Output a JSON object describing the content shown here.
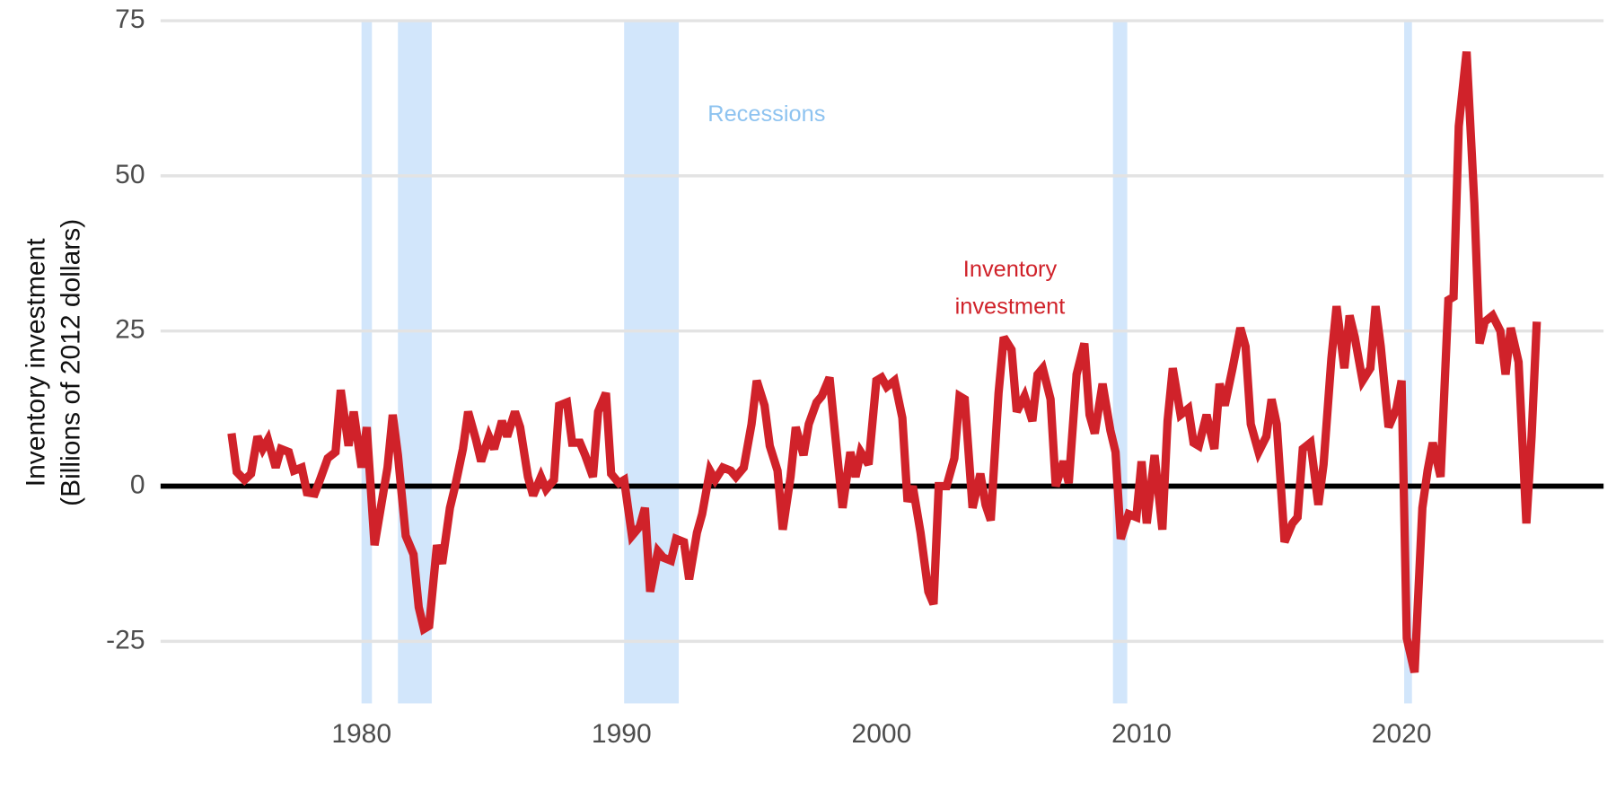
{
  "chart_data": {
    "type": "line",
    "y_label": [
      "Inventory investment",
      "(Billions of 2012 dollars)"
    ],
    "recession_label": "Recessions",
    "recession_color": "#d2e6fb",
    "recession_label_color": "#8ec3f0",
    "recessions": [
      [
        1980.0,
        1980.4
      ],
      [
        1981.4,
        1982.7
      ],
      [
        1990.1,
        1992.2
      ],
      [
        2008.9,
        2009.45
      ],
      [
        2020.1,
        2020.4
      ]
    ],
    "xlim": [
      1974,
      2028
    ],
    "xticks": [
      1980,
      1990,
      2000,
      2010,
      2020
    ],
    "ylim": [
      -35,
      75
    ],
    "yticks": [
      -25,
      0,
      25,
      50,
      75
    ],
    "grid": true,
    "series": [
      {
        "name": "Inventory investment",
        "color": "#d0222a",
        "x": [
          1975.0,
          1975.2,
          1975.5,
          1975.75,
          1976.0,
          1976.2,
          1976.4,
          1976.7,
          1976.9,
          1977.2,
          1977.4,
          1977.7,
          1977.9,
          1978.2,
          1978.4,
          1978.7,
          1979.0,
          1979.2,
          1979.5,
          1979.7,
          1980.0,
          1980.2,
          1980.5,
          1980.7,
          1981.0,
          1981.2,
          1981.4,
          1981.7,
          1982.0,
          1982.2,
          1982.4,
          1982.6,
          1982.9,
          1983.1,
          1983.4,
          1983.6,
          1983.9,
          1984.1,
          1984.4,
          1984.6,
          1984.9,
          1985.1,
          1985.4,
          1985.6,
          1985.9,
          1986.1,
          1986.4,
          1986.6,
          1986.9,
          1987.1,
          1987.4,
          1987.6,
          1987.9,
          1988.1,
          1988.4,
          1988.6,
          1988.9,
          1989.1,
          1989.4,
          1989.6,
          1989.9,
          1990.1,
          1990.4,
          1990.7,
          1990.9,
          1991.1,
          1991.4,
          1991.6,
          1991.9,
          1992.1,
          1992.4,
          1992.6,
          1992.9,
          1993.1,
          1993.4,
          1993.6,
          1993.9,
          1994.2,
          1994.4,
          1994.7,
          1995.0,
          1995.2,
          1995.5,
          1995.7,
          1996.0,
          1996.2,
          1996.5,
          1996.7,
          1997.0,
          1997.2,
          1997.5,
          1997.7,
          1998.0,
          1998.2,
          1998.5,
          1998.8,
          1999.0,
          1999.2,
          1999.5,
          1999.8,
          2000.0,
          2000.2,
          2000.5,
          2000.8,
          2001.0,
          2001.2,
          2001.5,
          2001.8,
          2002.0,
          2002.2,
          2002.5,
          2002.8,
          2003.0,
          2003.2,
          2003.5,
          2003.8,
          2004.0,
          2004.2,
          2004.5,
          2004.7,
          2005.0,
          2005.2,
          2005.5,
          2005.8,
          2006.0,
          2006.2,
          2006.5,
          2006.7,
          2007.0,
          2007.2,
          2007.5,
          2007.8,
          2008.0,
          2008.2,
          2008.5,
          2008.8,
          2009.0,
          2009.2,
          2009.5,
          2009.8,
          2010.0,
          2010.2,
          2010.5,
          2010.8,
          2011.0,
          2011.2,
          2011.5,
          2011.8,
          2012.0,
          2012.2,
          2012.5,
          2012.8,
          2013.0,
          2013.2,
          2013.5,
          2013.8,
          2014.0,
          2014.2,
          2014.5,
          2014.8,
          2015.0,
          2015.2,
          2015.5,
          2015.8,
          2016.0,
          2016.2,
          2016.5,
          2016.8,
          2017.0,
          2017.3,
          2017.5,
          2017.8,
          2018.0,
          2018.2,
          2018.5,
          2018.8,
          2019.0,
          2019.2,
          2019.5,
          2019.8,
          2020.0,
          2020.2,
          2020.5,
          2020.8,
          2021.0,
          2021.2,
          2021.5,
          2021.8,
          2022.0,
          2022.2,
          2022.5,
          2022.8,
          2023.0,
          2023.2,
          2023.5,
          2023.8,
          2024.0,
          2024.2,
          2024.5,
          2024.8,
          2025.0,
          2025.2
        ],
        "values": [
          8.5,
          2.3,
          1,
          2,
          8,
          6,
          7.5,
          3,
          6,
          5.5,
          2.5,
          3,
          -1,
          -1.2,
          1,
          4.5,
          5.5,
          15.5,
          6.5,
          12,
          3,
          9.5,
          -9.5,
          -4.5,
          3,
          11.5,
          5,
          -8,
          -11,
          -19.5,
          -23,
          -22.5,
          -9.5,
          -12.5,
          -3.5,
          0,
          6,
          12,
          7.5,
          4,
          8,
          6,
          10.5,
          8,
          12,
          9.5,
          1.5,
          -1.5,
          1.5,
          -0.5,
          1,
          13,
          13.5,
          7,
          7,
          5,
          1.5,
          12,
          15,
          2,
          0.5,
          1,
          -8,
          -6.5,
          -3.5,
          -17,
          -10.5,
          -11.5,
          -12,
          -8.5,
          -9,
          -15,
          -7.5,
          -4.5,
          2.5,
          1,
          3,
          2.5,
          1.5,
          3,
          10,
          17,
          13,
          6.5,
          2.5,
          -7,
          1.5,
          9.5,
          5,
          10,
          13.5,
          14.5,
          17.5,
          9,
          -3.5,
          5.5,
          1.5,
          5.5,
          3.5,
          17,
          17.5,
          16,
          17,
          11,
          -2.5,
          0,
          -7.5,
          -17,
          -19,
          0,
          0,
          4.5,
          14.5,
          14,
          -3.5,
          2,
          -3,
          -5.5,
          15,
          24,
          22,
          12,
          14.5,
          10.5,
          18,
          19,
          14,
          0,
          4,
          0.5,
          18,
          23,
          11.5,
          8.5,
          16.5,
          9,
          5.5,
          -8.5,
          -4.5,
          -5,
          4,
          -6,
          5,
          -7,
          10.5,
          19,
          11.5,
          12.5,
          7,
          6.5,
          11.5,
          6,
          16.5,
          13,
          19,
          25.5,
          22.5,
          10,
          5.5,
          8,
          14,
          10,
          -9,
          -6,
          -5,
          6,
          7,
          -3,
          3.5,
          20.5,
          29,
          19,
          27.5,
          24,
          17,
          19,
          29,
          22.5,
          9.5,
          12.5,
          17,
          -24.5,
          -30,
          -3.5,
          2.5,
          7,
          1.5,
          30,
          30.5,
          58,
          70,
          45.5,
          23,
          26.5,
          27.5,
          25,
          18,
          25.5,
          20,
          -6,
          8,
          26.5
        ]
      }
    ]
  }
}
